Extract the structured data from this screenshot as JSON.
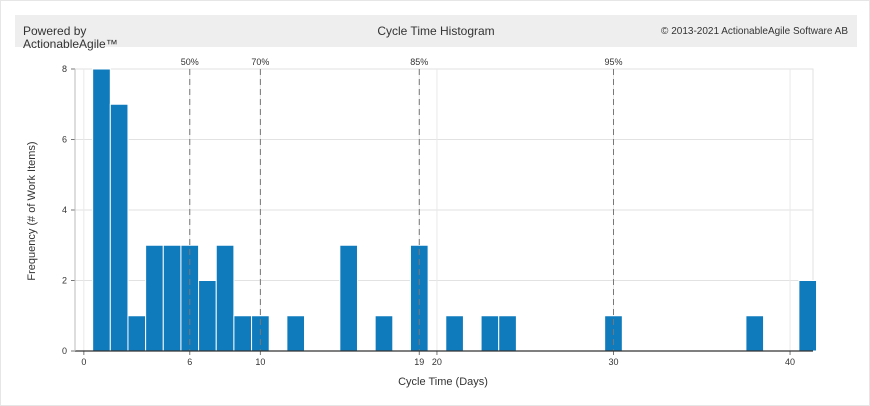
{
  "header": {
    "powered_line1": "Powered by",
    "powered_line2": "ActionableAgile™",
    "title": "Cycle Time Histogram",
    "copyright": "© 2013-2021 ActionableAgile Software AB"
  },
  "chart_data": {
    "type": "bar",
    "title": "Cycle Time Histogram",
    "xlabel": "Cycle Time (Days)",
    "ylabel": "Frequency (# of Work Items)",
    "xlim": [
      -0.5,
      41.3
    ],
    "ylim": [
      0,
      8
    ],
    "x_ticks": [
      0,
      6,
      10,
      19,
      20,
      30,
      40
    ],
    "y_ticks": [
      0,
      2,
      4,
      6,
      8
    ],
    "grid": true,
    "bar_color": "#0f7bbd",
    "bars": [
      {
        "x": 1,
        "y": 8
      },
      {
        "x": 2,
        "y": 7
      },
      {
        "x": 3,
        "y": 1
      },
      {
        "x": 4,
        "y": 3
      },
      {
        "x": 5,
        "y": 3
      },
      {
        "x": 6,
        "y": 3
      },
      {
        "x": 7,
        "y": 2
      },
      {
        "x": 8,
        "y": 3
      },
      {
        "x": 9,
        "y": 1
      },
      {
        "x": 10,
        "y": 1
      },
      {
        "x": 12,
        "y": 1
      },
      {
        "x": 15,
        "y": 3
      },
      {
        "x": 17,
        "y": 1
      },
      {
        "x": 19,
        "y": 3
      },
      {
        "x": 21,
        "y": 1
      },
      {
        "x": 23,
        "y": 1
      },
      {
        "x": 24,
        "y": 1
      },
      {
        "x": 30,
        "y": 1
      },
      {
        "x": 38,
        "y": 1
      },
      {
        "x": 41,
        "y": 2
      }
    ],
    "percentiles": [
      {
        "label": "50%",
        "x": 6
      },
      {
        "label": "70%",
        "x": 10
      },
      {
        "label": "85%",
        "x": 19
      },
      {
        "label": "95%",
        "x": 30
      }
    ]
  }
}
